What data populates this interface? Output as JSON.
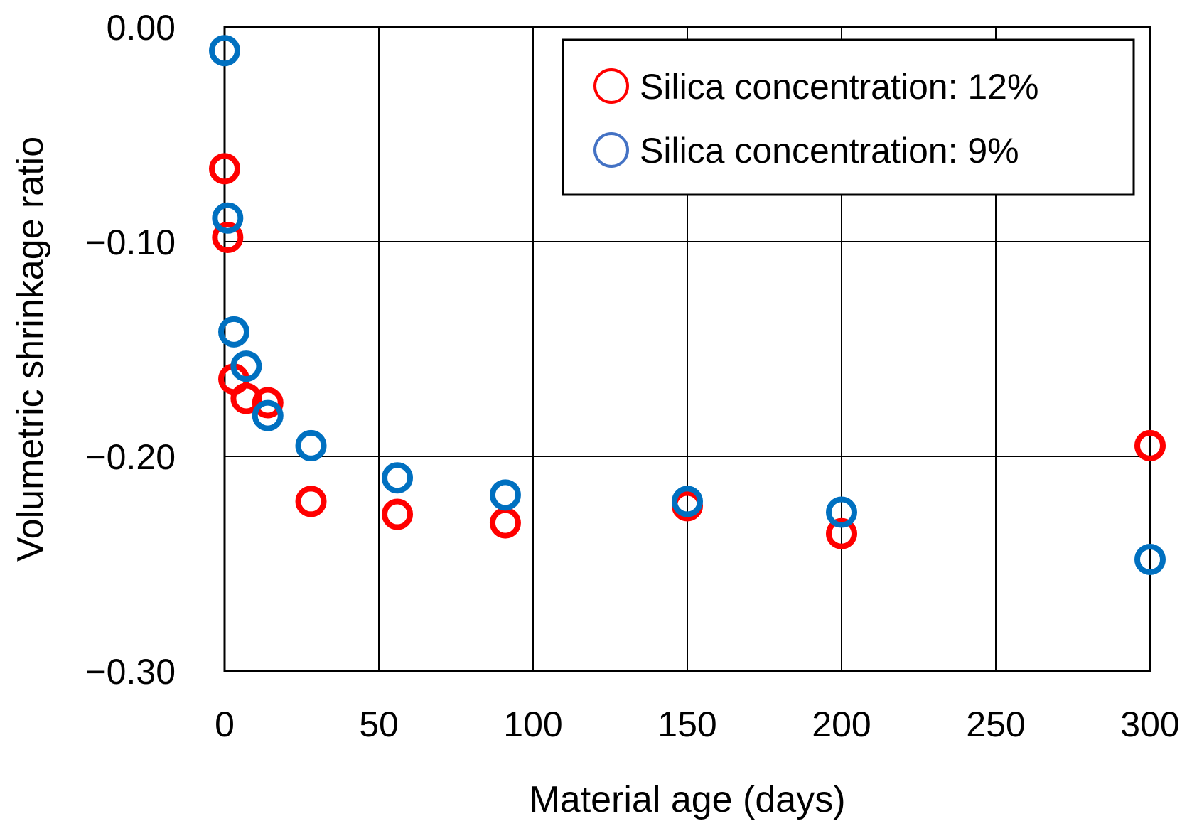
{
  "chart_data": {
    "type": "scatter",
    "title": "",
    "xlabel": "Material age (days)",
    "ylabel": "Volumetric shrinkage ratio",
    "xlim": [
      0,
      300
    ],
    "ylim": [
      -0.3,
      0.0
    ],
    "xticks": [
      0,
      50,
      100,
      150,
      200,
      250,
      300
    ],
    "xtick_labels": [
      "0",
      "50",
      "100",
      "150",
      "200",
      "250",
      "300"
    ],
    "yticks": [
      0.0,
      -0.1,
      -0.2,
      -0.3
    ],
    "ytick_labels": [
      "0.00",
      "−0.10",
      "−0.20",
      "−0.30"
    ],
    "grid": true,
    "legend_position": "top-right",
    "series": [
      {
        "name": "Silica concentration: 12%",
        "color": "#ff0000",
        "marker": "open-circle",
        "points": [
          {
            "x": 0,
            "y": -0.066
          },
          {
            "x": 1,
            "y": -0.098
          },
          {
            "x": 3,
            "y": -0.164
          },
          {
            "x": 7,
            "y": -0.173
          },
          {
            "x": 14,
            "y": -0.175
          },
          {
            "x": 28,
            "y": -0.221
          },
          {
            "x": 56,
            "y": -0.227
          },
          {
            "x": 91,
            "y": -0.231
          },
          {
            "x": 150,
            "y": -0.223
          },
          {
            "x": 200,
            "y": -0.236
          },
          {
            "x": 300,
            "y": -0.195
          }
        ]
      },
      {
        "name": "Silica concentration: 9%",
        "color": "#0070c0",
        "marker": "open-circle",
        "points": [
          {
            "x": 0,
            "y": -0.011
          },
          {
            "x": 1,
            "y": -0.089
          },
          {
            "x": 3,
            "y": -0.142
          },
          {
            "x": 7,
            "y": -0.158
          },
          {
            "x": 14,
            "y": -0.181
          },
          {
            "x": 28,
            "y": -0.195
          },
          {
            "x": 56,
            "y": -0.21
          },
          {
            "x": 91,
            "y": -0.218
          },
          {
            "x": 150,
            "y": -0.221
          },
          {
            "x": 200,
            "y": -0.226
          },
          {
            "x": 300,
            "y": -0.248
          }
        ]
      }
    ]
  },
  "legend": {
    "items": [
      {
        "label": "Silica concentration: 12%",
        "color": "#ff0000"
      },
      {
        "label": "Silica concentration: 9%",
        "color": "#4472c4"
      }
    ]
  }
}
